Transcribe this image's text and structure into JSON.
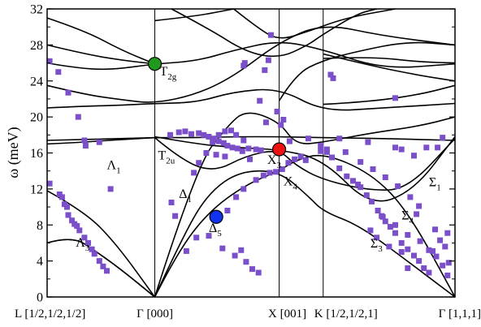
{
  "chart_data": {
    "type": "scatter",
    "title": "",
    "ylabel": "ω (meV)",
    "xlabel": "",
    "ylim": [
      0,
      32
    ],
    "yticks": [
      0,
      4,
      8,
      12,
      16,
      20,
      24,
      28,
      32
    ],
    "ytick_labels": [
      "0",
      "4",
      "8",
      "12",
      "16",
      "20",
      "24",
      "28",
      "32"
    ],
    "x_path_points": [
      {
        "label": "L [1/2,1/2,1/2]",
        "pos": 0.0
      },
      {
        "label": "Γ [000]",
        "pos": 0.866
      },
      {
        "label": "X [001]",
        "pos": 1.866
      },
      {
        "label": "K [1/2,1/2,1]",
        "pos": 2.22
      },
      {
        "label": "Γ [1,1,1]",
        "pos": 3.28
      }
    ],
    "xlim": [
      0,
      3.28
    ],
    "grid": false,
    "colors": {
      "measured": "#7b4fc9",
      "T2g": "#1f9a1f",
      "X3": "#ee1111",
      "Delta5": "#1133ee",
      "line": "#000000"
    },
    "annotations": [
      {
        "id": "T2g",
        "main": "T",
        "sub": "2g",
        "x": 0.866,
        "y": 24.6,
        "dx": 6
      },
      {
        "id": "T2u",
        "main": "T",
        "sub": "2u",
        "x": 0.866,
        "y": 15.3,
        "dx": 4
      },
      {
        "id": "Lambda1",
        "main": "Λ",
        "sub": "1",
        "x": 0.48,
        "y": 14.2,
        "dx": 0
      },
      {
        "id": "Lambda3",
        "main": "Λ",
        "sub": "3",
        "x": 0.23,
        "y": 5.6,
        "dx": 0
      },
      {
        "id": "Delta1",
        "main": "Δ",
        "sub": "1",
        "x": 1.06,
        "y": 11.0,
        "dx": 0
      },
      {
        "id": "Delta5",
        "main": "Δ",
        "sub": "5",
        "x": 1.3,
        "y": 7.2,
        "dx": 0
      },
      {
        "id": "X3",
        "main": "X",
        "sub": "3",
        "x": 1.77,
        "y": 14.8,
        "dx": 0
      },
      {
        "id": "X4",
        "main": "X",
        "sub": "4",
        "x": 1.9,
        "y": 12.4,
        "dx": 0
      },
      {
        "id": "Sigma1",
        "main": "Σ",
        "sub": "1",
        "x": 3.07,
        "y": 12.3,
        "dx": 0
      },
      {
        "id": "Sigma4",
        "main": "Σ",
        "sub": "4",
        "x": 2.85,
        "y": 8.6,
        "dx": 0
      },
      {
        "id": "Sigma3",
        "main": "Σ",
        "sub": "3",
        "x": 2.6,
        "y": 5.5,
        "dx": 0
      }
    ],
    "highlight_points": [
      {
        "id": "T2g",
        "x": 0.866,
        "y": 25.9,
        "color": "#1f9a1f"
      },
      {
        "id": "X3",
        "x": 1.866,
        "y": 16.4,
        "color": "#ee1111"
      },
      {
        "id": "Delta5",
        "x": 1.36,
        "y": 8.9,
        "color": "#1133ee"
      }
    ],
    "measured_points": [
      [
        0.02,
        26.2
      ],
      [
        0.09,
        25.0
      ],
      [
        0.17,
        22.7
      ],
      [
        0.02,
        12.6
      ],
      [
        0.1,
        11.4
      ],
      [
        0.12,
        11.1
      ],
      [
        0.14,
        10.3
      ],
      [
        0.16,
        10.0
      ],
      [
        0.17,
        9.1
      ],
      [
        0.2,
        8.5
      ],
      [
        0.22,
        8.1
      ],
      [
        0.24,
        7.9
      ],
      [
        0.26,
        7.4
      ],
      [
        0.3,
        6.6
      ],
      [
        0.33,
        6.0
      ],
      [
        0.36,
        5.3
      ],
      [
        0.38,
        4.8
      ],
      [
        0.42,
        4.0
      ],
      [
        0.45,
        3.4
      ],
      [
        0.48,
        2.9
      ],
      [
        0.25,
        20.0
      ],
      [
        0.3,
        17.4
      ],
      [
        0.31,
        16.8
      ],
      [
        0.42,
        17.2
      ],
      [
        0.51,
        12.0
      ],
      [
        0.99,
        18.0
      ],
      [
        1.06,
        18.3
      ],
      [
        1.11,
        18.4
      ],
      [
        1.16,
        18.1
      ],
      [
        1.22,
        18.2
      ],
      [
        1.26,
        18.0
      ],
      [
        1.3,
        17.8
      ],
      [
        1.34,
        17.6
      ],
      [
        1.38,
        17.3
      ],
      [
        1.42,
        17.1
      ],
      [
        1.45,
        16.8
      ],
      [
        1.49,
        16.6
      ],
      [
        1.53,
        16.5
      ],
      [
        1.57,
        16.2
      ],
      [
        1.62,
        16.5
      ],
      [
        1.68,
        16.4
      ],
      [
        1.72,
        16.3
      ],
      [
        1.36,
        15.8
      ],
      [
        1.43,
        15.6
      ],
      [
        1.0,
        10.5
      ],
      [
        1.03,
        9.0
      ],
      [
        1.18,
        13.8
      ],
      [
        1.22,
        14.9
      ],
      [
        1.28,
        16.0
      ],
      [
        1.33,
        17.2
      ],
      [
        1.38,
        18.0
      ],
      [
        1.43,
        18.4
      ],
      [
        1.48,
        18.5
      ],
      [
        1.52,
        18.0
      ],
      [
        1.58,
        17.4
      ],
      [
        1.63,
        15.3
      ],
      [
        1.41,
        5.4
      ],
      [
        1.51,
        4.6
      ],
      [
        1.56,
        5.2
      ],
      [
        1.6,
        3.9
      ],
      [
        1.65,
        3.1
      ],
      [
        1.7,
        2.7
      ],
      [
        1.12,
        5.1
      ],
      [
        1.2,
        6.6
      ],
      [
        1.3,
        6.8
      ],
      [
        1.45,
        9.6
      ],
      [
        1.52,
        11.1
      ],
      [
        1.58,
        12.0
      ],
      [
        1.68,
        13.0
      ],
      [
        1.74,
        13.5
      ],
      [
        1.79,
        13.8
      ],
      [
        1.84,
        13.9
      ],
      [
        1.89,
        14.2
      ],
      [
        1.94,
        14.9
      ],
      [
        1.99,
        15.3
      ],
      [
        2.04,
        15.6
      ],
      [
        2.08,
        15.2
      ],
      [
        2.1,
        17.6
      ],
      [
        1.95,
        17.3
      ],
      [
        1.75,
        25.2
      ],
      [
        1.78,
        26.3
      ],
      [
        1.8,
        29.1
      ],
      [
        1.58,
        25.7
      ],
      [
        1.59,
        26.0
      ],
      [
        1.71,
        21.8
      ],
      [
        1.85,
        20.6
      ],
      [
        1.9,
        19.7
      ],
      [
        1.88,
        19.1
      ],
      [
        2.2,
        16.2
      ],
      [
        2.25,
        16.1
      ],
      [
        2.29,
        15.5
      ],
      [
        2.35,
        14.3
      ],
      [
        2.41,
        13.4
      ],
      [
        2.46,
        12.9
      ],
      [
        2.5,
        12.5
      ],
      [
        2.52,
        12.2
      ],
      [
        2.57,
        11.3
      ],
      [
        2.61,
        10.6
      ],
      [
        2.66,
        9.6
      ],
      [
        2.69,
        9.0
      ],
      [
        2.72,
        8.4
      ],
      [
        2.76,
        7.8
      ],
      [
        2.8,
        7.1
      ],
      [
        2.85,
        6.0
      ],
      [
        2.9,
        5.3
      ],
      [
        2.95,
        4.6
      ],
      [
        2.99,
        4.0
      ],
      [
        3.03,
        3.2
      ],
      [
        3.07,
        2.7
      ],
      [
        2.2,
        16.8
      ],
      [
        2.25,
        16.4
      ],
      [
        2.4,
        16.1
      ],
      [
        2.52,
        15.0
      ],
      [
        2.62,
        14.2
      ],
      [
        2.72,
        13.3
      ],
      [
        2.82,
        12.3
      ],
      [
        2.92,
        11.1
      ],
      [
        2.99,
        10.1
      ],
      [
        2.7,
        8.9
      ],
      [
        2.8,
        8.0
      ],
      [
        2.9,
        6.9
      ],
      [
        3.0,
        6.2
      ],
      [
        3.07,
        5.2
      ],
      [
        3.13,
        4.5
      ],
      [
        3.18,
        3.5
      ],
      [
        3.22,
        2.4
      ],
      [
        2.85,
        16.4
      ],
      [
        2.95,
        15.7
      ],
      [
        3.05,
        16.6
      ],
      [
        3.14,
        16.6
      ],
      [
        3.18,
        17.7
      ],
      [
        2.3,
        24.3
      ],
      [
        2.28,
        24.7
      ],
      [
        2.8,
        22.1
      ],
      [
        3.12,
        7.5
      ],
      [
        3.2,
        5.6
      ],
      [
        3.23,
        3.8
      ],
      [
        2.97,
        9.2
      ],
      [
        3.22,
        7.1
      ],
      [
        3.16,
        6.3
      ],
      [
        2.6,
        7.4
      ],
      [
        2.65,
        6.6
      ],
      [
        2.75,
        5.6
      ],
      [
        2.85,
        5.0
      ],
      [
        2.9,
        3.2
      ],
      [
        3.1,
        5.1
      ],
      [
        1.76,
        19.4
      ],
      [
        2.35,
        17.6
      ],
      [
        2.58,
        17.2
      ],
      [
        2.8,
        16.6
      ],
      [
        2.95,
        15.7
      ]
    ],
    "dispersion_curves": [
      [
        [
          0,
          6.0
        ],
        [
          0.2,
          6.8
        ],
        [
          0.4,
          5.0
        ],
        [
          0.6,
          3.0
        ],
        [
          0.866,
          0
        ]
      ],
      [
        [
          0,
          6.0
        ],
        [
          0.2,
          6.8
        ],
        [
          0.4,
          5.0
        ],
        [
          0.6,
          3.0
        ],
        [
          0.866,
          0
        ]
      ],
      [
        [
          0,
          11.8
        ],
        [
          0.3,
          9.5
        ],
        [
          0.55,
          6.0
        ],
        [
          0.866,
          0
        ]
      ],
      [
        [
          0,
          17.4
        ],
        [
          0.3,
          17.5
        ],
        [
          0.6,
          17.6
        ],
        [
          0.866,
          17.7
        ],
        [
          1.2,
          17.7
        ],
        [
          1.5,
          17.8
        ],
        [
          1.866,
          17.8
        ],
        [
          2.22,
          17.7
        ],
        [
          2.7,
          17.6
        ],
        [
          3.28,
          17.4
        ]
      ],
      [
        [
          0,
          17.0
        ],
        [
          0.3,
          17.2
        ],
        [
          0.6,
          17.5
        ],
        [
          0.866,
          17.7
        ]
      ],
      [
        [
          0,
          26.0
        ],
        [
          0.2,
          25.5
        ],
        [
          0.5,
          25.2
        ],
        [
          0.866,
          25.9
        ],
        [
          1.2,
          26.2
        ],
        [
          1.5,
          27.4
        ],
        [
          1.866,
          28.5
        ],
        [
          2.22,
          27.5
        ],
        [
          2.7,
          25.3
        ],
        [
          3.28,
          25.9
        ]
      ],
      [
        [
          0,
          31.0
        ],
        [
          0.3,
          29.6
        ],
        [
          0.6,
          27.4
        ],
        [
          0.866,
          25.9
        ]
      ],
      [
        [
          0,
          28.0
        ],
        [
          0.3,
          27.0
        ],
        [
          0.6,
          26.3
        ],
        [
          0.866,
          25.9
        ]
      ],
      [
        [
          0,
          23.5
        ],
        [
          0.3,
          22.5
        ],
        [
          0.6,
          21.9
        ],
        [
          0.866,
          21.5
        ],
        [
          1.2,
          22.5
        ],
        [
          1.5,
          24.5
        ],
        [
          1.866,
          28.3
        ],
        [
          2.22,
          30.4
        ],
        [
          2.7,
          29.0
        ],
        [
          3.28,
          28.0
        ]
      ],
      [
        [
          0,
          21.0
        ],
        [
          0.3,
          21.2
        ],
        [
          0.6,
          21.3
        ],
        [
          0.866,
          21.5
        ],
        [
          1.2,
          21.6
        ],
        [
          1.5,
          22.8
        ],
        [
          1.866,
          23.2
        ],
        [
          2.22,
          20.6
        ],
        [
          2.7,
          21.0
        ],
        [
          3.28,
          21.5
        ]
      ],
      [
        [
          0.866,
          0
        ],
        [
          1.1,
          7.0
        ],
        [
          1.3,
          11.6
        ],
        [
          1.55,
          14.0
        ],
        [
          1.866,
          14.0
        ],
        [
          2.1,
          11.2
        ],
        [
          2.22,
          9.5
        ],
        [
          2.5,
          8.0
        ],
        [
          2.8,
          5.0
        ],
        [
          3.28,
          0
        ]
      ],
      [
        [
          0.866,
          0
        ],
        [
          1.05,
          5.0
        ],
        [
          1.3,
          9.5
        ],
        [
          1.6,
          12.5
        ],
        [
          1.866,
          14.0
        ],
        [
          2.0,
          15.2
        ],
        [
          2.22,
          16.0
        ],
        [
          2.6,
          13.8
        ],
        [
          2.9,
          9.6
        ],
        [
          3.28,
          0
        ]
      ],
      [
        [
          0.866,
          0
        ],
        [
          1.2,
          14.5
        ],
        [
          1.45,
          19.0
        ],
        [
          1.6,
          20.8
        ],
        [
          1.866,
          19.5
        ],
        [
          2.0,
          16.9
        ],
        [
          2.22,
          17.2
        ],
        [
          2.6,
          18.2
        ],
        [
          3.0,
          19.0
        ],
        [
          3.28,
          20.0
        ]
      ],
      [
        [
          0.866,
          17.7
        ],
        [
          1.1,
          15.0
        ],
        [
          1.35,
          13.9
        ],
        [
          1.6,
          15.7
        ],
        [
          1.866,
          16.4
        ],
        [
          2.0,
          14.6
        ],
        [
          2.22,
          13.0
        ],
        [
          2.6,
          11.8
        ],
        [
          2.9,
          12.0
        ],
        [
          3.28,
          17.6
        ]
      ],
      [
        [
          0.866,
          17.8
        ],
        [
          1.2,
          17.0
        ],
        [
          1.5,
          16.6
        ],
        [
          1.866,
          16.4
        ],
        [
          2.22,
          15.3
        ],
        [
          2.6,
          10.0
        ],
        [
          2.95,
          11.8
        ],
        [
          3.28,
          17.8
        ]
      ],
      [
        [
          0.866,
          30.7
        ],
        [
          1.2,
          31.2
        ],
        [
          1.5,
          32.0
        ]
      ],
      [
        [
          1.0,
          32.0
        ],
        [
          1.3,
          29.8
        ],
        [
          1.6,
          27.2
        ],
        [
          1.866,
          26.5
        ],
        [
          2.1,
          28.0
        ],
        [
          2.22,
          29.2
        ],
        [
          2.5,
          31.5
        ],
        [
          2.65,
          32.0
        ]
      ],
      [
        [
          1.5,
          32.0
        ],
        [
          1.7,
          29.8
        ],
        [
          1.866,
          28.5
        ],
        [
          2.1,
          29.5
        ],
        [
          2.4,
          31.0
        ],
        [
          2.8,
          32.0
        ]
      ],
      [
        [
          2.22,
          27.0
        ],
        [
          2.6,
          25.7
        ],
        [
          3.0,
          24.6
        ],
        [
          3.28,
          24.0
        ]
      ],
      [
        [
          2.22,
          26.5
        ],
        [
          2.6,
          26.7
        ],
        [
          3.0,
          26.1
        ],
        [
          3.28,
          26.0
        ]
      ],
      [
        [
          1.866,
          21.8
        ],
        [
          2.0,
          24.8
        ],
        [
          2.22,
          26.3
        ],
        [
          2.5,
          27.3
        ],
        [
          2.9,
          28.4
        ],
        [
          3.28,
          28.0
        ]
      ],
      [
        [
          2.22,
          21.4
        ],
        [
          2.6,
          21.7
        ],
        [
          3.0,
          22.5
        ],
        [
          3.28,
          23.5
        ]
      ]
    ]
  }
}
